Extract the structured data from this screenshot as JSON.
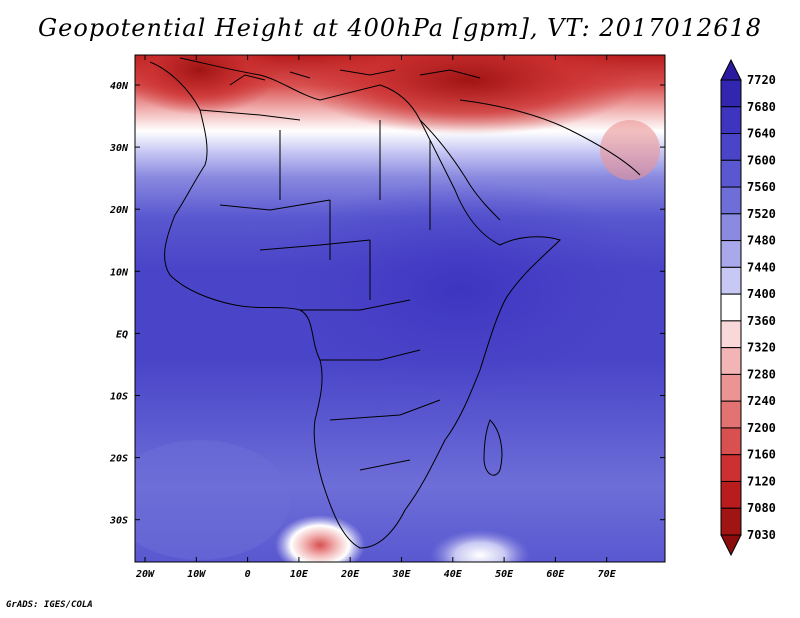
{
  "title": "Geopotential Height at 400hPa [gpm], VT: 2017012618",
  "credit": "GrADS: IGES/COLA",
  "lat_labels": [
    "40N",
    "30N",
    "20N",
    "10N",
    "EQ",
    "10S",
    "20S",
    "30S"
  ],
  "lon_labels": [
    "20W",
    "10W",
    "0",
    "10E",
    "20E",
    "30E",
    "40E",
    "50E",
    "60E",
    "70E"
  ],
  "colorbar": {
    "levels": [
      "7720",
      "7680",
      "7640",
      "7600",
      "7560",
      "7520",
      "7480",
      "7440",
      "7400",
      "7360",
      "7320",
      "7280",
      "7240",
      "7200",
      "7160",
      "7120",
      "7080",
      "7030"
    ],
    "colors": [
      "#2a1aa0",
      "#3226b0",
      "#3d34c0",
      "#4a44c8",
      "#5a58d0",
      "#6e6ed8",
      "#8a8ae0",
      "#a8a8ea",
      "#c8c8f4",
      "#ffffff",
      "#f8d8d8",
      "#f2b4b4",
      "#eb9494",
      "#e37272",
      "#d95050",
      "#cc3030",
      "#b81c1c",
      "#a01414",
      "#8a0c0c"
    ]
  }
}
